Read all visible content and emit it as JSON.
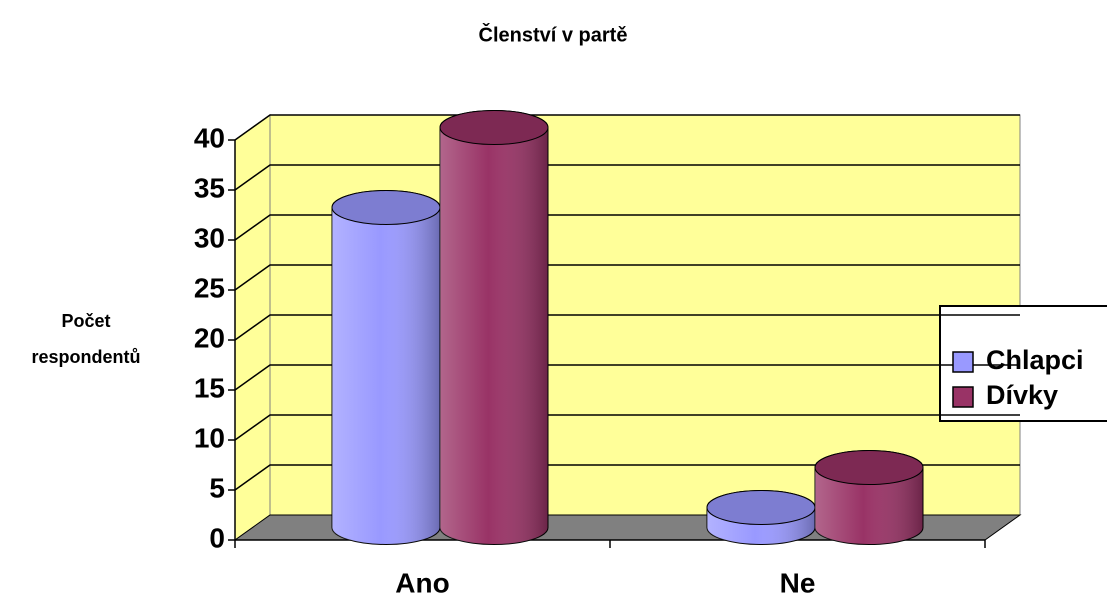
{
  "chart_data": {
    "type": "bar3d",
    "title": "Členství v partě",
    "ylabel": [
      "Počet",
      "respondentů"
    ],
    "categories": [
      "Ano",
      "Ne"
    ],
    "series": [
      {
        "name": "Chlapci",
        "color": "#9999ff",
        "values": [
          32,
          2
        ]
      },
      {
        "name": "Dívky",
        "color": "#993366",
        "values": [
          40,
          6
        ]
      }
    ],
    "ylim": [
      0,
      40
    ],
    "yticks": [
      0,
      5,
      10,
      15,
      20,
      25,
      30,
      35,
      40
    ],
    "grid": true,
    "legend": "right",
    "wall_color": "#ffff99",
    "floor_color": "#808080"
  }
}
